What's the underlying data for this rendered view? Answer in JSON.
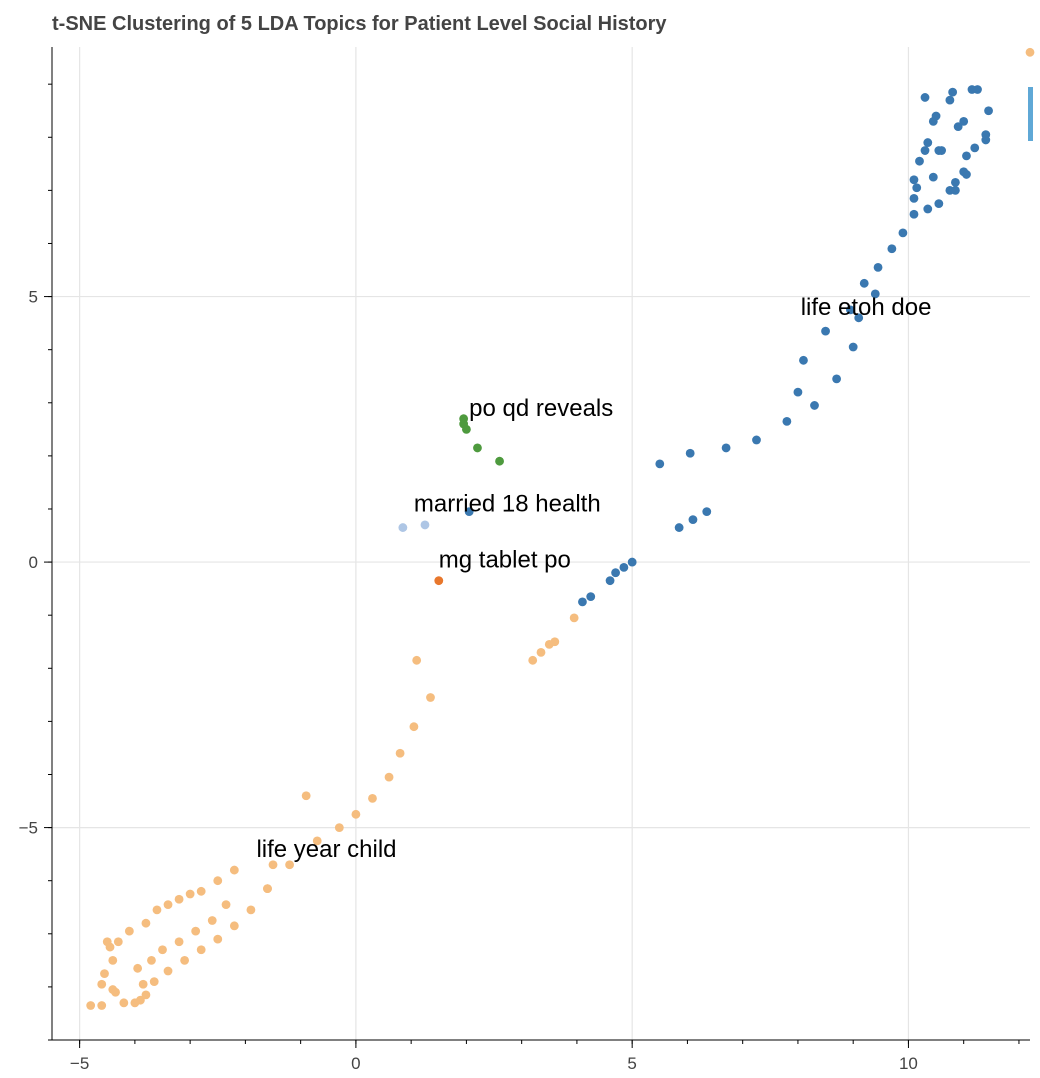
{
  "chart_data": {
    "type": "scatter",
    "title": "t-SNE Clustering of 5 LDA Topics for Patient Level Social History",
    "xlabel": "",
    "ylabel": "",
    "xlim": [
      -5.5,
      12.2
    ],
    "ylim": [
      -9.0,
      9.7
    ],
    "x_ticks": [
      -5,
      0,
      5,
      10
    ],
    "y_ticks": [
      -5,
      0,
      5
    ],
    "x_tick_labels": [
      "−5",
      "0",
      "5",
      "10"
    ],
    "y_tick_labels": [
      "−5",
      "0",
      "5"
    ],
    "grid": true,
    "legend": "none",
    "series": [
      {
        "color": "#f5bd7f",
        "points": [
          [
            -4.8,
            -8.35
          ],
          [
            -4.6,
            -8.35
          ],
          [
            -4.4,
            -8.05
          ],
          [
            -4.2,
            -8.3
          ],
          [
            -4.0,
            -8.3
          ],
          [
            -3.9,
            -8.25
          ],
          [
            -3.8,
            -8.15
          ],
          [
            -4.35,
            -8.1
          ],
          [
            -4.6,
            -7.95
          ],
          [
            -4.55,
            -7.75
          ],
          [
            -4.4,
            -7.5
          ],
          [
            -4.45,
            -7.25
          ],
          [
            -4.5,
            -7.15
          ],
          [
            -4.3,
            -7.15
          ],
          [
            -4.1,
            -6.95
          ],
          [
            -3.8,
            -6.8
          ],
          [
            -3.6,
            -6.55
          ],
          [
            -3.4,
            -6.45
          ],
          [
            -3.2,
            -6.35
          ],
          [
            -3.0,
            -6.25
          ],
          [
            -2.8,
            -6.2
          ],
          [
            -2.5,
            -6.0
          ],
          [
            -2.2,
            -5.8
          ],
          [
            -1.6,
            -6.15
          ],
          [
            -1.2,
            -5.7
          ],
          [
            -2.35,
            -6.45
          ],
          [
            -2.6,
            -6.75
          ],
          [
            -2.9,
            -6.95
          ],
          [
            -3.2,
            -7.15
          ],
          [
            -3.5,
            -7.3
          ],
          [
            -3.7,
            -7.5
          ],
          [
            -3.95,
            -7.65
          ],
          [
            -3.85,
            -7.95
          ],
          [
            -3.65,
            -7.9
          ],
          [
            -3.4,
            -7.7
          ],
          [
            -3.1,
            -7.5
          ],
          [
            -2.8,
            -7.3
          ],
          [
            -2.5,
            -7.1
          ],
          [
            -2.2,
            -6.85
          ],
          [
            -1.9,
            -6.55
          ],
          [
            -1.6,
            -6.15
          ],
          [
            -1.5,
            -5.7
          ],
          [
            -0.7,
            -5.25
          ],
          [
            -0.3,
            -5.0
          ],
          [
            0.0,
            -4.75
          ],
          [
            0.3,
            -4.45
          ],
          [
            0.6,
            -4.05
          ],
          [
            0.8,
            -3.6
          ],
          [
            1.05,
            -3.1
          ],
          [
            1.35,
            -2.55
          ],
          [
            1.1,
            -1.85
          ],
          [
            -0.9,
            -4.4
          ],
          [
            3.2,
            -1.85
          ],
          [
            3.35,
            -1.7
          ],
          [
            3.5,
            -1.55
          ],
          [
            3.6,
            -1.5
          ],
          [
            3.95,
            -1.05
          ],
          [
            12.2,
            9.6
          ]
        ]
      },
      {
        "color": "#3a78b0",
        "points": [
          [
            2.05,
            0.95
          ],
          [
            4.1,
            -0.75
          ],
          [
            4.25,
            -0.65
          ],
          [
            4.6,
            -0.35
          ],
          [
            4.7,
            -0.2
          ],
          [
            4.85,
            -0.1
          ],
          [
            5.0,
            0.0
          ],
          [
            5.85,
            0.65
          ],
          [
            6.1,
            0.8
          ],
          [
            6.35,
            0.95
          ],
          [
            5.5,
            1.85
          ],
          [
            6.05,
            2.05
          ],
          [
            6.7,
            2.15
          ],
          [
            7.25,
            2.3
          ],
          [
            7.8,
            2.65
          ],
          [
            8.3,
            2.95
          ],
          [
            8.0,
            3.2
          ],
          [
            8.7,
            3.45
          ],
          [
            8.1,
            3.8
          ],
          [
            8.5,
            4.35
          ],
          [
            9.0,
            4.05
          ],
          [
            9.1,
            4.6
          ],
          [
            8.95,
            4.75
          ],
          [
            9.4,
            5.05
          ],
          [
            9.2,
            5.25
          ],
          [
            9.45,
            5.55
          ],
          [
            9.7,
            5.9
          ],
          [
            9.9,
            6.2
          ],
          [
            10.1,
            6.55
          ],
          [
            10.35,
            6.65
          ],
          [
            10.55,
            6.75
          ],
          [
            10.1,
            6.85
          ],
          [
            10.15,
            7.05
          ],
          [
            10.45,
            7.25
          ],
          [
            10.1,
            7.2
          ],
          [
            10.3,
            7.75
          ],
          [
            10.2,
            7.55
          ],
          [
            10.35,
            7.9
          ],
          [
            10.6,
            7.75
          ],
          [
            10.75,
            7.0
          ],
          [
            10.85,
            7.15
          ],
          [
            11.0,
            7.35
          ],
          [
            11.05,
            7.65
          ],
          [
            11.2,
            7.8
          ],
          [
            11.4,
            7.95
          ],
          [
            11.4,
            8.05
          ],
          [
            10.9,
            8.2
          ],
          [
            11.0,
            8.3
          ],
          [
            11.45,
            8.5
          ],
          [
            10.45,
            8.3
          ],
          [
            10.5,
            8.4
          ],
          [
            10.3,
            8.75
          ],
          [
            10.75,
            8.7
          ],
          [
            10.8,
            8.85
          ],
          [
            11.15,
            8.9
          ],
          [
            11.25,
            8.9
          ],
          [
            10.85,
            7.0
          ],
          [
            11.05,
            7.3
          ],
          [
            10.55,
            7.75
          ]
        ]
      },
      {
        "color": "#4e9a3e",
        "points": [
          [
            1.95,
            2.7
          ],
          [
            1.95,
            2.6
          ],
          [
            2.0,
            2.5
          ],
          [
            2.2,
            2.15
          ],
          [
            2.6,
            1.9
          ]
        ]
      },
      {
        "color": "#aec6e5",
        "points": [
          [
            0.85,
            0.65
          ],
          [
            1.25,
            0.7
          ]
        ]
      },
      {
        "color": "#e8772c",
        "points": [
          [
            1.5,
            -0.35
          ]
        ]
      }
    ],
    "annotations": [
      {
        "text": "life etoh doe",
        "x": 8.05,
        "y": 4.65
      },
      {
        "text": "po qd reveals",
        "x": 2.05,
        "y": 2.75
      },
      {
        "text": "married 18 health",
        "x": 1.05,
        "y": 0.95
      },
      {
        "text": "mg tablet po",
        "x": 1.5,
        "y": -0.1
      },
      {
        "text": "life year child",
        "x": -1.8,
        "y": -5.55
      }
    ]
  }
}
